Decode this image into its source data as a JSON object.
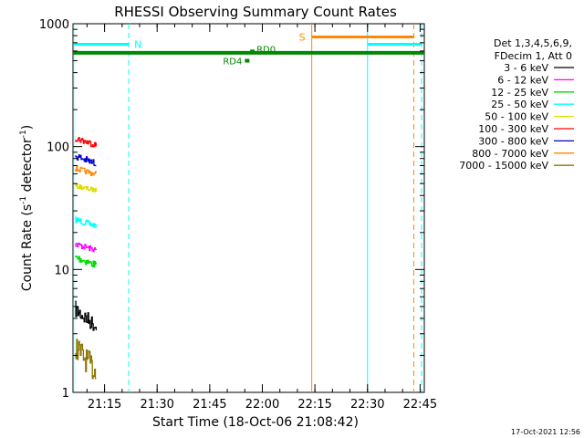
{
  "chart_data": {
    "type": "line",
    "title": "RHESSI Observing Summary Count Rates",
    "xlabel": "Start Time (18-Oct-06 21:08:42)",
    "ylabel_main": "Count Rate (s",
    "ylabel_sup1": "-1",
    "ylabel_mid": " detector",
    "ylabel_sup2": "-1",
    "ylabel_end": ")",
    "yscale": "log",
    "ylim": [
      1,
      1000
    ],
    "xlim_minutes": [
      21.1,
      22.77
    ],
    "x_ticks": [
      {
        "label": "21:15",
        "h": 21.25
      },
      {
        "label": "21:30",
        "h": 21.5
      },
      {
        "label": "21:45",
        "h": 21.75
      },
      {
        "label": "22:00",
        "h": 22.0
      },
      {
        "label": "22:15",
        "h": 22.25
      },
      {
        "label": "22:30",
        "h": 22.5
      },
      {
        "label": "22:45",
        "h": 22.75
      }
    ],
    "y_ticks": [
      {
        "label": "1",
        "v": 1
      },
      {
        "label": "10",
        "v": 10
      },
      {
        "label": "100",
        "v": 100
      },
      {
        "label": "1000",
        "v": 1000
      }
    ],
    "legend_header": [
      "Det 1,3,4,5,6,9,",
      "FDecim 1, Att 0"
    ],
    "series": [
      {
        "name": "3 - 6 keV",
        "color": "#000000",
        "range": [
          3.2,
          5.5
        ]
      },
      {
        "name": "6 - 12 keV",
        "color": "#ff00ff",
        "range": [
          14,
          17
        ]
      },
      {
        "name": "12 - 25 keV",
        "color": "#00dd00",
        "range": [
          10.5,
          13.5
        ]
      },
      {
        "name": "25 - 50 keV",
        "color": "#00ffff",
        "range": [
          22,
          27
        ]
      },
      {
        "name": "50 - 100 keV",
        "color": "#dddd00",
        "range": [
          43,
          50
        ]
      },
      {
        "name": "100 - 300 keV",
        "color": "#ff0000",
        "range": [
          100,
          125
        ]
      },
      {
        "name": "300 - 800 keV",
        "color": "#0000cc",
        "range": [
          70,
          90
        ]
      },
      {
        "name": "800 - 7000 keV",
        "color": "#ff8800",
        "range": [
          58,
          70
        ]
      },
      {
        "name": "7000 - 15000 keV",
        "color": "#8b7500",
        "range": [
          1.3,
          3.0
        ]
      }
    ],
    "annotations": {
      "N": {
        "label": "N",
        "start_h": 21.103,
        "end_h": 21.365,
        "value": 680,
        "color": "#00ffff"
      },
      "S": {
        "label": "S",
        "start_h": 22.235,
        "end_h": 22.72,
        "value": 780,
        "color": "#ff8800"
      },
      "S2": {
        "start_h": 22.5,
        "end_h": 22.757,
        "value": 680,
        "color": "#00ffff"
      },
      "RD4": {
        "label": "RD4",
        "h": 21.93,
        "value": 500
      },
      "RD0": {
        "label": "RD0",
        "h": 21.955,
        "value": 585
      },
      "green_band_value": 580,
      "vlines": [
        {
          "h": 21.103,
          "color": "#00ffff",
          "dash": false
        },
        {
          "h": 21.365,
          "color": "#00ffff",
          "dash": true
        },
        {
          "h": 22.235,
          "color": "#ff8800",
          "dash": false
        },
        {
          "h": 22.5,
          "color": "#00ffff",
          "dash": false
        },
        {
          "h": 22.72,
          "color": "#ff8800",
          "dash": true
        },
        {
          "h": 22.757,
          "color": "#00ffff",
          "dash": true
        }
      ]
    },
    "timestamp": "17-Oct-2021 12:56"
  }
}
